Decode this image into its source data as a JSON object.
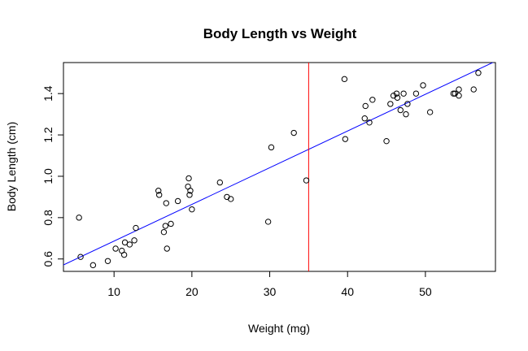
{
  "chart_data": {
    "type": "scatter",
    "title": "Body Length vs Weight",
    "xlabel": "Weight (mg)",
    "ylabel": "Body Length (cm)",
    "xlim": [
      3.5,
      59
    ],
    "ylim": [
      0.54,
      1.55
    ],
    "xticks": [
      10,
      20,
      30,
      40,
      50
    ],
    "yticks": [
      0.6,
      0.8,
      1.0,
      1.2,
      1.4
    ],
    "ytick_labels": [
      "0.6",
      "0.8",
      "1.0",
      "1.2",
      "1.4"
    ],
    "grid": false,
    "legend": "none",
    "point_color": "#000000",
    "points": [
      {
        "x": 5.5,
        "y": 0.8
      },
      {
        "x": 5.7,
        "y": 0.61
      },
      {
        "x": 7.3,
        "y": 0.57
      },
      {
        "x": 9.2,
        "y": 0.59
      },
      {
        "x": 10.2,
        "y": 0.65
      },
      {
        "x": 11.0,
        "y": 0.64
      },
      {
        "x": 11.3,
        "y": 0.62
      },
      {
        "x": 11.4,
        "y": 0.68
      },
      {
        "x": 12.0,
        "y": 0.67
      },
      {
        "x": 12.6,
        "y": 0.69
      },
      {
        "x": 12.8,
        "y": 0.75
      },
      {
        "x": 15.7,
        "y": 0.93
      },
      {
        "x": 15.8,
        "y": 0.91
      },
      {
        "x": 16.4,
        "y": 0.73
      },
      {
        "x": 16.6,
        "y": 0.76
      },
      {
        "x": 16.7,
        "y": 0.87
      },
      {
        "x": 16.8,
        "y": 0.65
      },
      {
        "x": 17.3,
        "y": 0.77
      },
      {
        "x": 18.2,
        "y": 0.88
      },
      {
        "x": 19.5,
        "y": 0.95
      },
      {
        "x": 19.6,
        "y": 0.99
      },
      {
        "x": 19.7,
        "y": 0.91
      },
      {
        "x": 19.8,
        "y": 0.93
      },
      {
        "x": 20.0,
        "y": 0.84
      },
      {
        "x": 23.6,
        "y": 0.97
      },
      {
        "x": 24.5,
        "y": 0.9
      },
      {
        "x": 25.0,
        "y": 0.89
      },
      {
        "x": 29.8,
        "y": 0.78
      },
      {
        "x": 30.2,
        "y": 1.14
      },
      {
        "x": 33.1,
        "y": 1.21
      },
      {
        "x": 34.7,
        "y": 0.98
      },
      {
        "x": 39.6,
        "y": 1.47
      },
      {
        "x": 39.7,
        "y": 1.18
      },
      {
        "x": 42.2,
        "y": 1.28
      },
      {
        "x": 42.3,
        "y": 1.34
      },
      {
        "x": 42.8,
        "y": 1.26
      },
      {
        "x": 43.2,
        "y": 1.37
      },
      {
        "x": 45.0,
        "y": 1.17
      },
      {
        "x": 45.5,
        "y": 1.35
      },
      {
        "x": 45.9,
        "y": 1.39
      },
      {
        "x": 46.3,
        "y": 1.4
      },
      {
        "x": 46.4,
        "y": 1.38
      },
      {
        "x": 46.8,
        "y": 1.32
      },
      {
        "x": 47.2,
        "y": 1.4
      },
      {
        "x": 47.5,
        "y": 1.3
      },
      {
        "x": 47.7,
        "y": 1.35
      },
      {
        "x": 48.8,
        "y": 1.4
      },
      {
        "x": 49.7,
        "y": 1.44
      },
      {
        "x": 50.6,
        "y": 1.31
      },
      {
        "x": 53.6,
        "y": 1.4
      },
      {
        "x": 53.8,
        "y": 1.4
      },
      {
        "x": 54.3,
        "y": 1.39
      },
      {
        "x": 54.3,
        "y": 1.42
      },
      {
        "x": 56.2,
        "y": 1.42
      },
      {
        "x": 56.8,
        "y": 1.5
      }
    ],
    "regression_line": {
      "intercept": 0.509,
      "slope": 0.01775,
      "color": "#0000ff"
    },
    "vertical_line": {
      "x": 35,
      "color": "#ff0000"
    }
  }
}
